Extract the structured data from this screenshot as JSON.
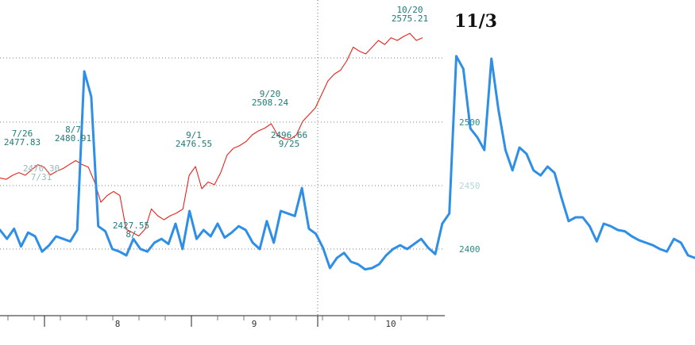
{
  "chart_data": {
    "type": "line",
    "title": "11/3",
    "xlabel": "",
    "ylabel": "",
    "x_tick_labels": [
      "8",
      "9",
      "10"
    ],
    "y_tick_labels": [
      "2500",
      "2450",
      "2400"
    ],
    "grid": true,
    "colors": {
      "price": "#e8231c",
      "volume": "#2f8fe6",
      "grid": "#555555",
      "annotation": "#1f7a7a"
    },
    "series": [
      {
        "values": [
          2468,
          2467,
          2470,
          2472,
          2470,
          2474,
          2477.83,
          2476,
          2470.3,
          2473,
          2475,
          2478,
          2480.91,
          2478,
          2476,
          2465,
          2450,
          2455,
          2458,
          2455,
          2430,
          2427.55,
          2425,
          2430,
          2445,
          2440,
          2437,
          2440,
          2442,
          2445,
          2470,
          2476.55,
          2460,
          2465,
          2463,
          2472,
          2485,
          2490,
          2492,
          2495,
          2500,
          2503,
          2505,
          2508.24,
          2500,
          2497,
          2496.66,
          2500,
          2510,
          2515,
          2520,
          2530,
          2540,
          2545,
          2548,
          2555,
          2565,
          2562,
          2560,
          2565,
          2570,
          2567,
          2572,
          2570,
          2573,
          2575.21,
          2570,
          2572
        ],
        "annotations": [
          {
            "date": "7/26",
            "value": "2477.83"
          },
          {
            "date": "7/31",
            "value": "2470.30"
          },
          {
            "date": "8/7",
            "value": "2480.91"
          },
          {
            "date": "8/",
            "value": "2427.55"
          },
          {
            "date": "9/1",
            "value": "2476.55"
          },
          {
            "date": "9/20",
            "value": "2508.24"
          },
          {
            "date": "9/25",
            "value": "2496.66"
          },
          {
            "date": "10/20",
            "value": "2575.21"
          }
        ]
      },
      {
        "values": [
          2415,
          2408,
          2416,
          2402,
          2413,
          2410,
          2398,
          2403,
          2410,
          2408,
          2406,
          2415,
          2540,
          2520,
          2418,
          2414,
          2400,
          2398,
          2395,
          2408,
          2400,
          2398,
          2405,
          2408,
          2404,
          2420,
          2400,
          2430,
          2408,
          2415,
          2410,
          2420,
          2409,
          2413,
          2418,
          2415,
          2405,
          2400,
          2422,
          2405,
          2430,
          2428,
          2426,
          2448,
          2416,
          2412,
          2401,
          2385,
          2393,
          2397,
          2390,
          2388,
          2384,
          2385,
          2388,
          2395,
          2400,
          2403,
          2400,
          2404,
          2408,
          2401,
          2396,
          2420,
          2428,
          2552,
          2542,
          2495,
          2488,
          2478,
          2550,
          2510,
          2478,
          2462,
          2480,
          2475,
          2462,
          2458,
          2465,
          2460,
          2440,
          2422,
          2425,
          2425,
          2418,
          2406,
          2420,
          2418,
          2415,
          2414,
          2410,
          2407,
          2405,
          2403,
          2400,
          2398,
          2408,
          2405,
          2395,
          2393
        ],
        "annotations": []
      }
    ]
  }
}
